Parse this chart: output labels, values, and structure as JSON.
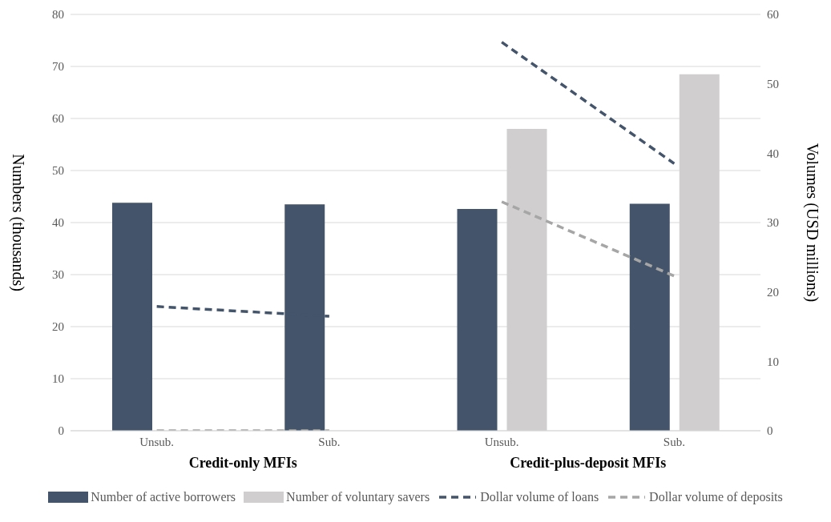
{
  "chart_data": {
    "type": "bar",
    "categories": [
      "Unsub.",
      "Sub.",
      "Unsub.",
      "Sub."
    ],
    "annotations": [
      "Credit-only MFIs",
      "Credit-plus-deposit MFIs"
    ],
    "ylabel": "Numbers (thousands)",
    "y2label": "Volumes (USD millions)",
    "ylim": [
      0,
      80
    ],
    "yticks": [
      0,
      10,
      20,
      30,
      40,
      50,
      60,
      70,
      80
    ],
    "y2lim": [
      0,
      60
    ],
    "y2ticks": [
      0,
      10,
      20,
      30,
      40,
      50,
      60
    ],
    "grid": "y",
    "legend": "bottom",
    "series": [
      {
        "name": "Number of active borrowers",
        "color": "#44546a",
        "values": [
          43.8,
          43.5,
          42.6,
          43.6
        ]
      },
      {
        "name": "Number of voluntary savers",
        "color": "#d0cece",
        "values": [
          null,
          null,
          58,
          68.5
        ]
      },
      {
        "name": "Dollar volume of loans",
        "type": "line",
        "axis": "y2",
        "line_style": "dashed",
        "color": "#44546a",
        "values": [
          17.9,
          16.5,
          56,
          38.5
        ]
      },
      {
        "name": "Dollar volume of deposits",
        "type": "line",
        "axis": "y2",
        "line_style": "dashed",
        "color": "#a6a6a6",
        "values": [
          0,
          0,
          33,
          22.3
        ]
      }
    ]
  }
}
